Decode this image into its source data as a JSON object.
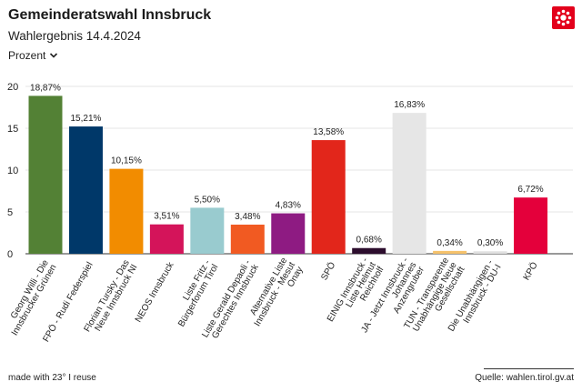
{
  "header": {
    "title": "Gemeinderatswahl Innsbruck",
    "subtitle": "Wahlergebnis 14.4.2024",
    "dropdown_label": "Prozent"
  },
  "footer": {
    "made_with": "made with 23° I reuse",
    "source": "Quelle: wahlen.tirol.gv.at"
  },
  "icons": {
    "logo": "tirol-logo-icon",
    "dropdown": "chevron-down-icon"
  },
  "chart_data": {
    "type": "bar",
    "ylim": [
      0,
      20
    ],
    "yticks": [
      0,
      5,
      10,
      15,
      20
    ],
    "categories": [
      [
        "Georg Willi - Die",
        "Innsbrucker Grünen"
      ],
      [
        "FPÖ - Rudi Federspiel"
      ],
      [
        "Florian Tursky - Das",
        "Neue Innsbruck NI"
      ],
      [
        "NEOS Innsbruck"
      ],
      [
        "Liste Fritz -",
        "Bürgerforum Tirol"
      ],
      [
        "Liste Gerald Depaoli -",
        "Gerechtes Innsbruck"
      ],
      [
        "Alternative Liste",
        "Innsbruck - Mesut",
        "Onay"
      ],
      [
        "SPÖ"
      ],
      [
        "EINIG Innsbruck -",
        "Liste Helmut",
        "Reichholf"
      ],
      [
        "JA - Jetzt Innsbruck -",
        "Johannes",
        "Anzengruber"
      ],
      [
        "TUN - Transparente",
        "Unabhängige Neue",
        "Gesellschaft"
      ],
      [
        "Die Unabhängigen -",
        "Innsbruck - DU-I"
      ],
      [
        "KPÖ"
      ]
    ],
    "values": [
      18.87,
      15.21,
      10.15,
      3.51,
      5.5,
      3.48,
      4.83,
      13.58,
      0.68,
      16.83,
      0.34,
      0.3,
      6.72
    ],
    "labels": [
      "18,87%",
      "15,21%",
      "10,15%",
      "3,51%",
      "5,50%",
      "3,48%",
      "4,83%",
      "13,58%",
      "0,68%",
      "16,83%",
      "0,34%",
      "0,30%",
      "6,72%"
    ],
    "colors": [
      "#538135",
      "#003869",
      "#f28c00",
      "#d4145a",
      "#99cbcf",
      "#f15a22",
      "#8e1b82",
      "#e2261b",
      "#2c0d2d",
      "#e6e6e6",
      "#f5c26b",
      "#e0e0e0",
      "#e4003b"
    ]
  }
}
